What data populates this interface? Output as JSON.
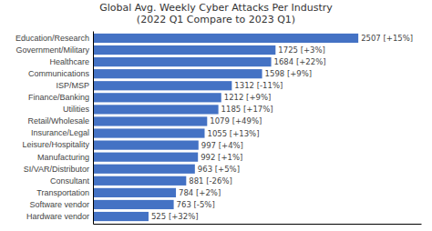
{
  "chart_data": {
    "type": "bar",
    "orientation": "horizontal",
    "title": "Global Avg. Weekly Cyber Attacks Per Industry\n(2022 Q1 Compare to 2023 Q1)",
    "categories": [
      "Hardware vendor",
      "Software vendor",
      "Transportation",
      "Consultant",
      "SI/VAR/Distributor",
      "Manufacturing",
      "Leisure/Hospitality",
      "Insurance/Legal",
      "Retail/Wholesale",
      "Utilities",
      "Finance/Banking",
      "ISP/MSP",
      "Communications",
      "Healthcare",
      "Government/Military",
      "Education/Research"
    ],
    "values": [
      525,
      763,
      784,
      881,
      963,
      992,
      997,
      1055,
      1079,
      1185,
      1212,
      1312,
      1598,
      1684,
      1725,
      2507
    ],
    "value_labels": [
      "525 [+32%]",
      "763 [-5%]",
      "784 [+2%]",
      "881 [-26%]",
      "963 [+5%]",
      "992 [+1%]",
      "997 [+4%]",
      "1055 [+13%]",
      "1079 [+49%]",
      "1185 [+17%]",
      "1212 [+9%]",
      "1312 [-11%]",
      "1598 [+9%]",
      "1684 [+22%]",
      "1725 [+3%]",
      "2507 [+15%]"
    ],
    "data_labels": true,
    "color": "#4472c4",
    "xlim": [
      0,
      3100
    ],
    "tick_labels": "y",
    "grid": false
  }
}
